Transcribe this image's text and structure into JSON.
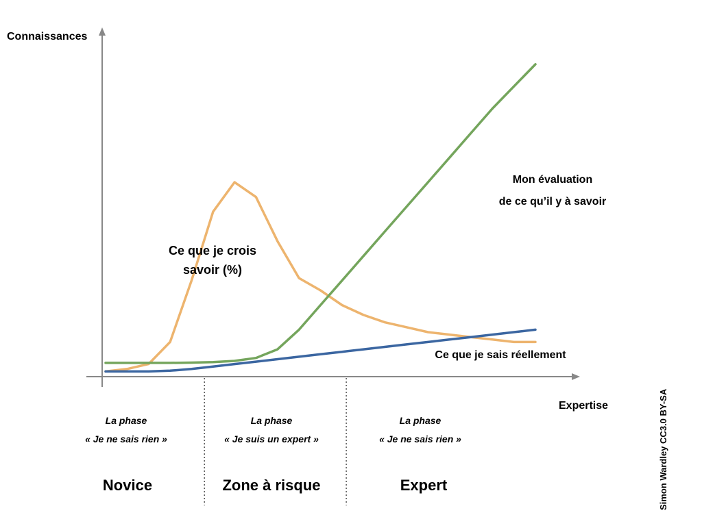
{
  "chart_data": {
    "type": "line",
    "xlabel": "Expertise",
    "ylabel": "Connaissances",
    "grid": false,
    "x": [
      0,
      5,
      10,
      15,
      20,
      25,
      30,
      35,
      40,
      45,
      50,
      55,
      60,
      65,
      70,
      75,
      80,
      85,
      90,
      95,
      100
    ],
    "series": [
      {
        "name": "Ce que je crois savoir (%)",
        "color": "#EDB46E",
        "values": [
          1,
          2,
          4,
          13,
          38,
          66,
          78,
          72,
          54,
          39,
          34,
          28,
          24,
          21,
          19,
          17,
          16,
          15,
          14,
          13,
          13
        ]
      },
      {
        "name": "Mon évaluation de ce qu'il y à savoir",
        "color": "#74A55C",
        "values": [
          4.5,
          4.5,
          4.5,
          4.5,
          4.6,
          4.8,
          5.3,
          6.5,
          10,
          18,
          28,
          38,
          48,
          58,
          68,
          78,
          88,
          98,
          108,
          117,
          126
        ]
      },
      {
        "name": "Ce que je sais réellement",
        "color": "#3B66A1",
        "values": [
          1,
          1,
          1,
          1.3,
          2,
          3,
          4,
          5,
          6,
          7,
          8,
          9,
          10,
          11,
          12,
          13,
          14,
          15,
          16,
          17,
          18
        ]
      }
    ],
    "annotations": {
      "believe": [
        "Ce que je crois",
        "savoir (%)"
      ],
      "evaluation": [
        "Mon évaluation",
        "de ce qu’il y à savoir"
      ],
      "actual": "Ce que je sais réellement"
    },
    "phases": [
      {
        "subtitle": "La phase",
        "quote": "« Je ne sais rien »",
        "name": "Novice"
      },
      {
        "subtitle": "La phase",
        "quote": "« Je suis un expert »",
        "name": "Zone à risque"
      },
      {
        "subtitle": "La phase",
        "quote": "« Je ne sais rien »",
        "name": "Expert"
      }
    ],
    "phase_boundaries_x": [
      23,
      56
    ]
  },
  "credit": "Simon Wardley CC3.0 BY-SA",
  "colors": {
    "axis": "#888888",
    "divider": "#555555"
  }
}
